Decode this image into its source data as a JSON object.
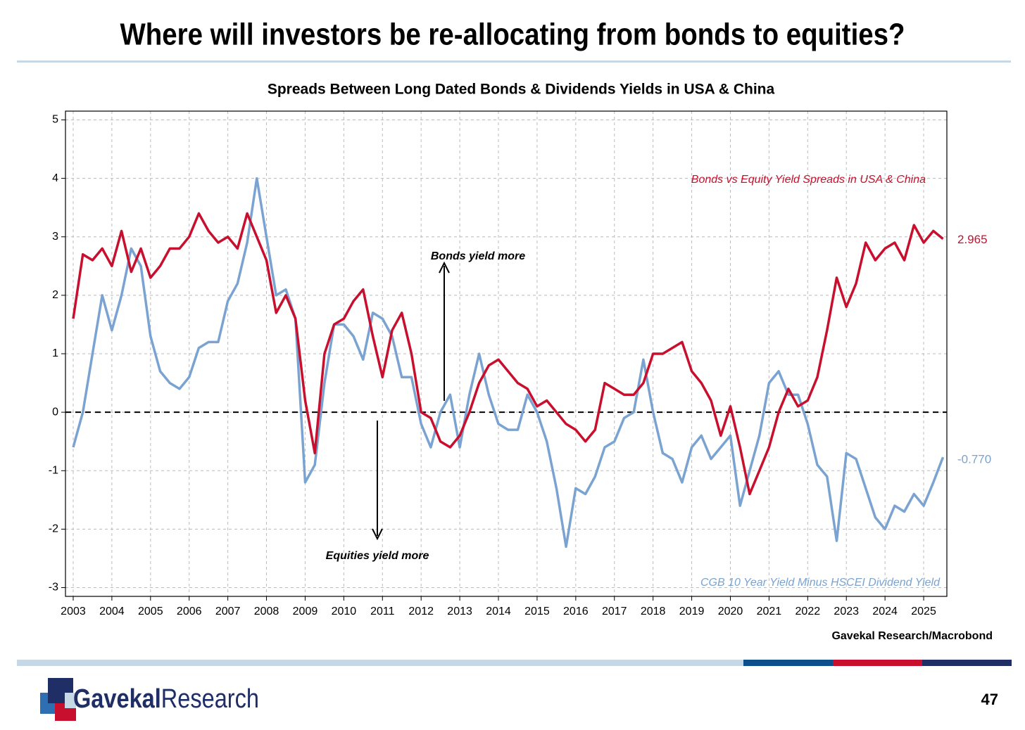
{
  "header": {
    "title": "Where will investors be re-allocating from bonds to equities?"
  },
  "chart_data": {
    "type": "line",
    "title": "Spreads Between Long Dated Bonds & Dividends Yields in USA & China",
    "x": [
      2003,
      2003.25,
      2003.5,
      2003.75,
      2004,
      2004.25,
      2004.5,
      2004.75,
      2005,
      2005.25,
      2005.5,
      2005.75,
      2006,
      2006.25,
      2006.5,
      2006.75,
      2007,
      2007.25,
      2007.5,
      2007.75,
      2008,
      2008.25,
      2008.5,
      2008.75,
      2009,
      2009.25,
      2009.5,
      2009.75,
      2010,
      2010.25,
      2010.5,
      2010.75,
      2011,
      2011.25,
      2011.5,
      2011.75,
      2012,
      2012.25,
      2012.5,
      2012.75,
      2013,
      2013.25,
      2013.5,
      2013.75,
      2014,
      2014.25,
      2014.5,
      2014.75,
      2015,
      2015.25,
      2015.5,
      2015.75,
      2016,
      2016.25,
      2016.5,
      2016.75,
      2017,
      2017.25,
      2017.5,
      2017.75,
      2018,
      2018.25,
      2018.5,
      2018.75,
      2019,
      2019.25,
      2019.5,
      2019.75,
      2020,
      2020.25,
      2020.5,
      2020.75,
      2021,
      2021.25,
      2021.5,
      2021.75,
      2022,
      2022.25,
      2022.5,
      2022.75,
      2023,
      2023.25,
      2023.5,
      2023.75,
      2024,
      2024.25,
      2024.5,
      2024.75,
      2025,
      2025.25,
      2025.5
    ],
    "series": [
      {
        "name": "Bonds vs Equity Yield Spreads in USA & China",
        "color": "#c8102e",
        "end_label": "2.965",
        "values": [
          1.6,
          2.7,
          2.6,
          2.8,
          2.5,
          3.1,
          2.4,
          2.8,
          2.3,
          2.5,
          2.8,
          2.8,
          3.0,
          3.4,
          3.1,
          2.9,
          3.0,
          2.8,
          3.4,
          3.0,
          2.6,
          1.7,
          2.0,
          1.6,
          0.2,
          -0.7,
          1.0,
          1.5,
          1.6,
          1.9,
          2.1,
          1.3,
          0.6,
          1.4,
          1.7,
          1.0,
          0.0,
          -0.1,
          -0.5,
          -0.6,
          -0.4,
          0.0,
          0.5,
          0.8,
          0.9,
          0.7,
          0.5,
          0.4,
          0.1,
          0.2,
          0.0,
          -0.2,
          -0.3,
          -0.5,
          -0.3,
          0.5,
          0.4,
          0.3,
          0.3,
          0.5,
          1.0,
          1.0,
          1.1,
          1.2,
          0.7,
          0.5,
          0.2,
          -0.4,
          0.1,
          -0.6,
          -1.4,
          -1.0,
          -0.6,
          0.0,
          0.4,
          0.1,
          0.2,
          0.6,
          1.4,
          2.3,
          1.8,
          2.2,
          2.9,
          2.6,
          2.8,
          2.9,
          2.6,
          3.2,
          2.9,
          3.1,
          2.965
        ]
      },
      {
        "name": "CGB 10 Year Yield Minus HSCEI Dividend Yield",
        "color": "#7aa3d1",
        "end_label": "-0.770",
        "values": [
          -0.6,
          0.0,
          1.0,
          2.0,
          1.4,
          2.0,
          2.8,
          2.5,
          1.3,
          0.7,
          0.5,
          0.4,
          0.6,
          1.1,
          1.2,
          1.2,
          1.9,
          2.2,
          2.9,
          4.0,
          3.0,
          2.0,
          2.1,
          1.6,
          -1.2,
          -0.9,
          0.5,
          1.5,
          1.5,
          1.3,
          0.9,
          1.7,
          1.6,
          1.3,
          0.6,
          0.6,
          -0.2,
          -0.6,
          0.0,
          0.3,
          -0.6,
          0.3,
          1.0,
          0.3,
          -0.2,
          -0.3,
          -0.3,
          0.3,
          0.0,
          -0.5,
          -1.3,
          -2.3,
          -1.3,
          -1.4,
          -1.1,
          -0.6,
          -0.5,
          -0.1,
          0.0,
          0.9,
          0.0,
          -0.7,
          -0.8,
          -1.2,
          -0.6,
          -0.4,
          -0.8,
          -0.6,
          -0.4,
          -1.6,
          -1.0,
          -0.4,
          0.5,
          0.7,
          0.3,
          0.3,
          -0.2,
          -0.9,
          -1.1,
          -2.2,
          -0.7,
          -0.8,
          -1.3,
          -1.8,
          -2.0,
          -1.6,
          -1.7,
          -1.4,
          -1.6,
          -1.2,
          -0.77
        ]
      }
    ],
    "xlim": [
      2002.8,
      2025.6
    ],
    "xticks": [
      2003,
      2004,
      2005,
      2006,
      2007,
      2008,
      2009,
      2010,
      2011,
      2012,
      2013,
      2014,
      2015,
      2016,
      2017,
      2018,
      2019,
      2020,
      2021,
      2022,
      2023,
      2024,
      2025
    ],
    "ylim": [
      -3.15,
      5.15
    ],
    "yticks": [
      5,
      4,
      3,
      2,
      1,
      0,
      -1,
      -2,
      -3
    ],
    "grid": true,
    "reference_line": 0,
    "annotations": [
      "Bonds yield more",
      "Equities yield more"
    ],
    "source": "Gavekal Research/Macrobond"
  },
  "footer": {
    "logo": [
      "Gavekal",
      "Research"
    ],
    "page": "47"
  }
}
